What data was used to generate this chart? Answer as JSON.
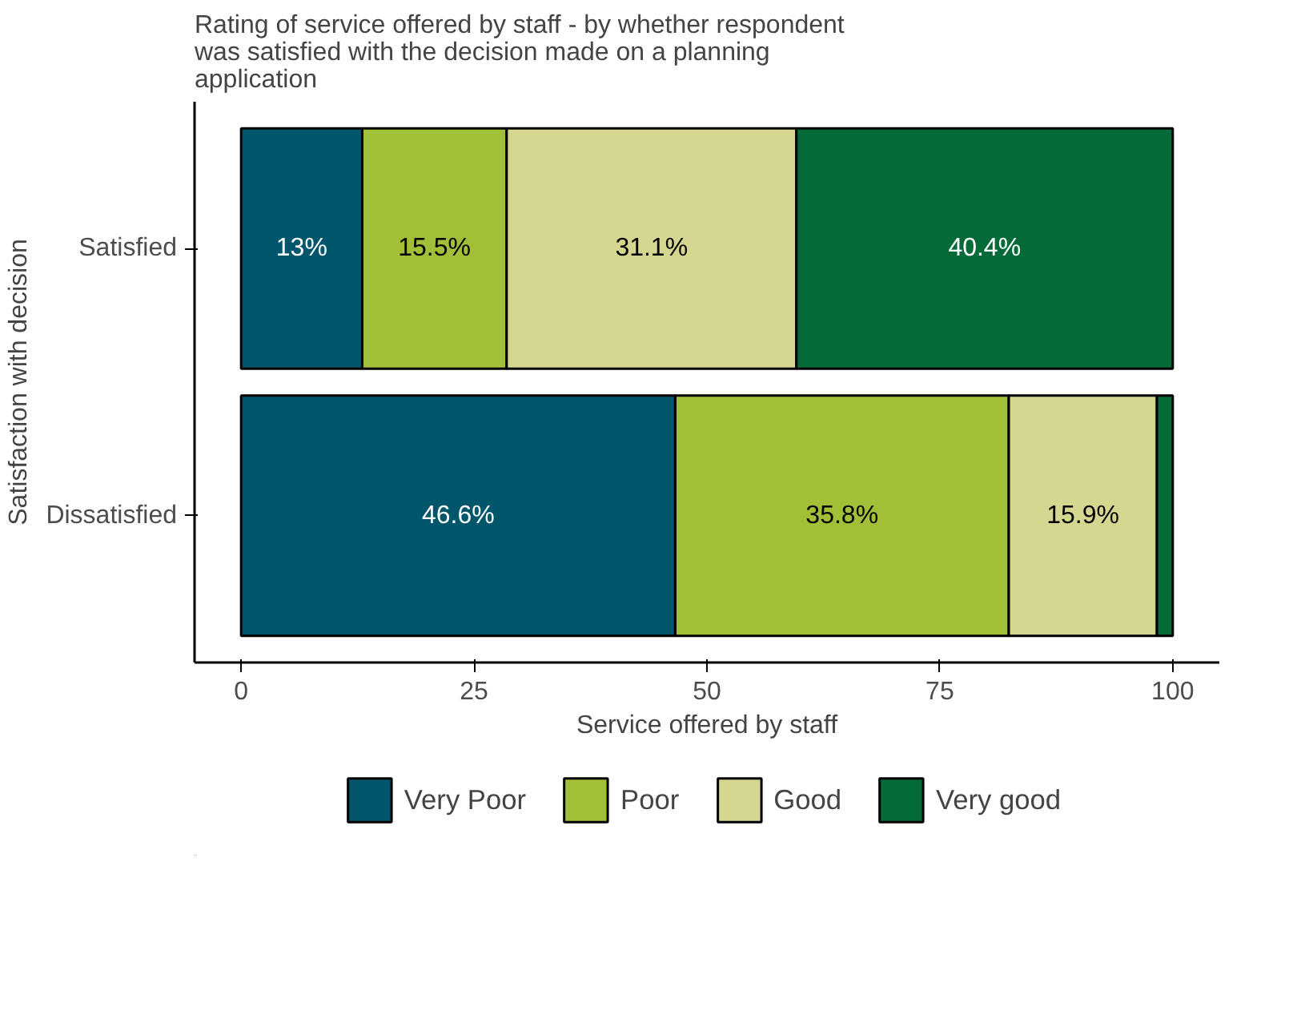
{
  "chart_data": {
    "type": "bar",
    "orientation": "horizontal",
    "stacked": true,
    "title": "Rating of service offered by staff - by whether respondent was satisfied with the decision made on a planning application",
    "xlabel": "Service offered by staff",
    "ylabel": "Satisfaction with decision",
    "categories": [
      "Satisfied",
      "Dissatisfied"
    ],
    "series": [
      {
        "name": "Very Poor",
        "color": "#02566b",
        "values": [
          13,
          46.6
        ],
        "value_labels": [
          "13%",
          "46.6%"
        ]
      },
      {
        "name": "Poor",
        "color": "#a2c037",
        "values": [
          15.5,
          35.8
        ],
        "value_labels": [
          "15.5%",
          "35.8%"
        ]
      },
      {
        "name": "Good",
        "color": "#d5d790",
        "values": [
          31.1,
          15.9
        ],
        "value_labels": [
          "31.1%",
          "15.9%"
        ]
      },
      {
        "name": "Very good",
        "color": "#046a38",
        "values": [
          40.4,
          1.7
        ],
        "value_labels": [
          "40.4%",
          null
        ]
      }
    ],
    "xlim": [
      -5,
      105
    ],
    "xticks": [
      0,
      25,
      50,
      75,
      100
    ],
    "grid": false,
    "legend": "bottom"
  }
}
